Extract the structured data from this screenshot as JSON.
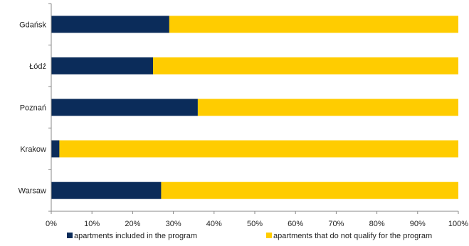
{
  "chart_data": {
    "type": "bar",
    "orientation": "horizontal",
    "stacked": "percent",
    "categories": [
      "Gdańsk",
      "Łódź",
      "Poznań",
      "Krakow",
      "Warsaw"
    ],
    "series": [
      {
        "name": "apartments included in the program",
        "color": "#0b2c5a",
        "values": [
          29,
          25,
          36,
          2,
          27
        ]
      },
      {
        "name": "apartments that do not qualify for the program",
        "color": "#ffcc00",
        "values": [
          71,
          75,
          64,
          98,
          73
        ]
      }
    ],
    "x_ticks": [
      "0%",
      "10%",
      "20%",
      "30%",
      "40%",
      "50%",
      "60%",
      "70%",
      "80%",
      "90%",
      "100%"
    ],
    "xlim": [
      0,
      100
    ],
    "grid": false,
    "legend_position": "bottom"
  }
}
